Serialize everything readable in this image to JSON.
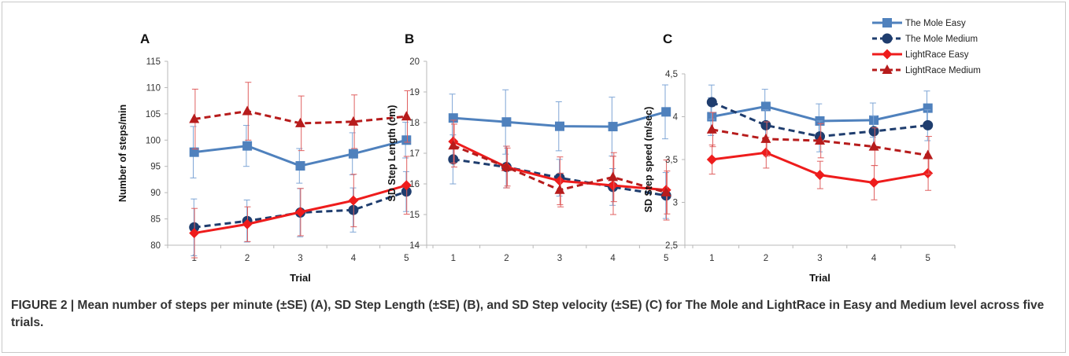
{
  "caption": "FIGURE 2 | Mean number of steps per minute (±SE) (A), SD Step Length (±SE) (B), and SD Step velocity (±SE) (C) for The Mole and LightRace in Easy and Medium level across five trials.",
  "legend": [
    {
      "name": "The Mole Easy",
      "color": "#4f81bd",
      "dash": false,
      "marker": "square"
    },
    {
      "name": "The Mole Medium",
      "color": "#1f3d6e",
      "dash": true,
      "marker": "circle"
    },
    {
      "name": "LightRace Easy",
      "color": "#ee1c1c",
      "dash": false,
      "marker": "diamond"
    },
    {
      "name": "LightRace Medium",
      "color": "#b71c1c",
      "dash": true,
      "marker": "triangle"
    }
  ],
  "chart_data": [
    {
      "type": "line",
      "panel": "A",
      "xlabel": "Trial",
      "ylabel": "Number of steps/min",
      "categories": [
        "1",
        "2",
        "3",
        "4",
        "5"
      ],
      "ylim": [
        80,
        115
      ],
      "yticks": [
        "80",
        "85",
        "90",
        "95",
        "100",
        "105",
        "110",
        "115"
      ],
      "series": [
        {
          "name": "The Mole Easy",
          "values": [
            97.7,
            98.9,
            95.1,
            97.4,
            100.0
          ],
          "err": [
            4.9,
            3.9,
            3.3,
            4.0,
            3.4
          ]
        },
        {
          "name": "The Mole Medium",
          "values": [
            83.4,
            84.6,
            86.2,
            86.7,
            90.2
          ],
          "err": [
            5.4,
            4.0,
            4.6,
            4.2,
            3.8
          ]
        },
        {
          "name": "LightRace Easy",
          "values": [
            82.3,
            84.0,
            86.3,
            88.5,
            91.4
          ],
          "err": [
            4.7,
            3.3,
            4.5,
            5.0,
            5.5
          ]
        },
        {
          "name": "LightRace Medium",
          "values": [
            104.0,
            105.5,
            103.2,
            103.5,
            104.5
          ],
          "err": [
            5.7,
            5.5,
            5.2,
            5.1,
            4.9
          ]
        }
      ]
    },
    {
      "type": "line",
      "panel": "B",
      "xlabel": "",
      "ylabel": "SD Step Length (cm)",
      "categories": [
        "1",
        "2",
        "3",
        "4",
        "5"
      ],
      "ylim": [
        14,
        20
      ],
      "yticks": [
        "14",
        "15",
        "16",
        "17",
        "18",
        "19",
        "20"
      ],
      "series": [
        {
          "name": "The Mole Easy",
          "values": [
            18.15,
            18.02,
            17.88,
            17.87,
            18.35
          ],
          "err": [
            0.78,
            1.05,
            0.8,
            0.96,
            0.88
          ]
        },
        {
          "name": "The Mole Medium",
          "values": [
            16.8,
            16.55,
            16.2,
            15.9,
            15.62
          ],
          "err": [
            0.8,
            0.68,
            0.6,
            0.6,
            0.75
          ]
        },
        {
          "name": "LightRace Easy",
          "values": [
            17.38,
            16.55,
            16.1,
            15.95,
            15.8
          ],
          "err": [
            0.7,
            0.68,
            0.78,
            0.95,
            0.98
          ]
        },
        {
          "name": "LightRace Medium",
          "values": [
            17.25,
            16.55,
            15.8,
            16.22,
            15.72
          ],
          "err": [
            0.7,
            0.62,
            0.55,
            0.8,
            0.7
          ]
        }
      ]
    },
    {
      "type": "line",
      "panel": "C",
      "xlabel": "Trial",
      "ylabel": "SD Step speed (m/sec)",
      "categories": [
        "1",
        "2",
        "3",
        "4",
        "5"
      ],
      "ylim": [
        2.5,
        4.5
      ],
      "yticks": [
        "2,5",
        "3",
        "3,5",
        "4",
        "4,5"
      ],
      "series": [
        {
          "name": "The Mole Easy",
          "values": [
            4.0,
            4.12,
            3.95,
            3.96,
            4.1
          ],
          "err": [
            0.22,
            0.2,
            0.2,
            0.2,
            0.2
          ]
        },
        {
          "name": "The Mole Medium",
          "values": [
            4.17,
            3.9,
            3.77,
            3.83,
            3.9
          ],
          "err": [
            0.2,
            0.18,
            0.18,
            0.18,
            0.18
          ]
        },
        {
          "name": "LightRace Easy",
          "values": [
            3.5,
            3.58,
            3.32,
            3.23,
            3.34
          ],
          "err": [
            0.17,
            0.18,
            0.16,
            0.2,
            0.2
          ]
        },
        {
          "name": "LightRace Medium",
          "values": [
            3.85,
            3.74,
            3.72,
            3.65,
            3.55
          ],
          "err": [
            0.2,
            0.2,
            0.2,
            0.22,
            0.22
          ]
        }
      ]
    }
  ]
}
